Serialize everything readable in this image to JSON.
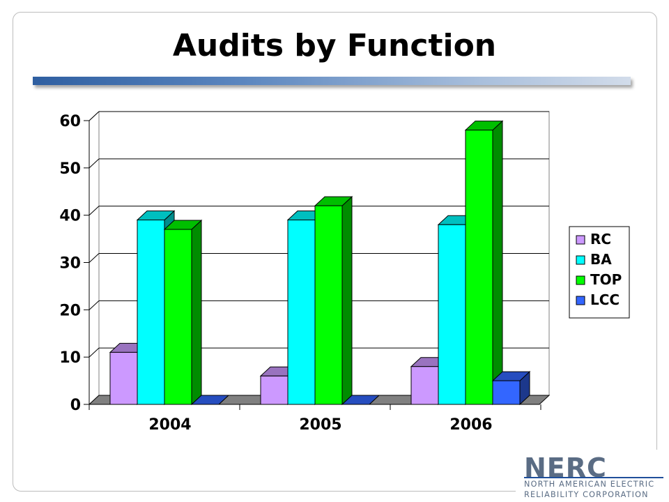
{
  "slide": {
    "title": "Audits by Function"
  },
  "logo": {
    "wordmark": "NERC",
    "line1": "NORTH AMERICAN ELECTRIC",
    "line2": "RELIABILITY CORPORATION",
    "color": "#5a6c84"
  },
  "chart_data": {
    "type": "bar",
    "style": "3d-clustered-column",
    "categories": [
      "2004",
      "2005",
      "2006"
    ],
    "series": [
      {
        "name": "RC",
        "values": [
          11,
          6,
          8
        ],
        "color": "#cc99ff"
      },
      {
        "name": "BA",
        "values": [
          39,
          39,
          38
        ],
        "color": "#00ffff"
      },
      {
        "name": "TOP",
        "values": [
          37,
          42,
          58
        ],
        "color": "#00ff00"
      },
      {
        "name": "LCC",
        "values": [
          0,
          0,
          5
        ],
        "color": "#3366ff"
      }
    ],
    "y_ticks": [
      "0",
      "10",
      "20",
      "30",
      "40",
      "50",
      "60"
    ],
    "ylim": [
      0,
      60
    ],
    "grid": true,
    "legend_position": "right"
  }
}
